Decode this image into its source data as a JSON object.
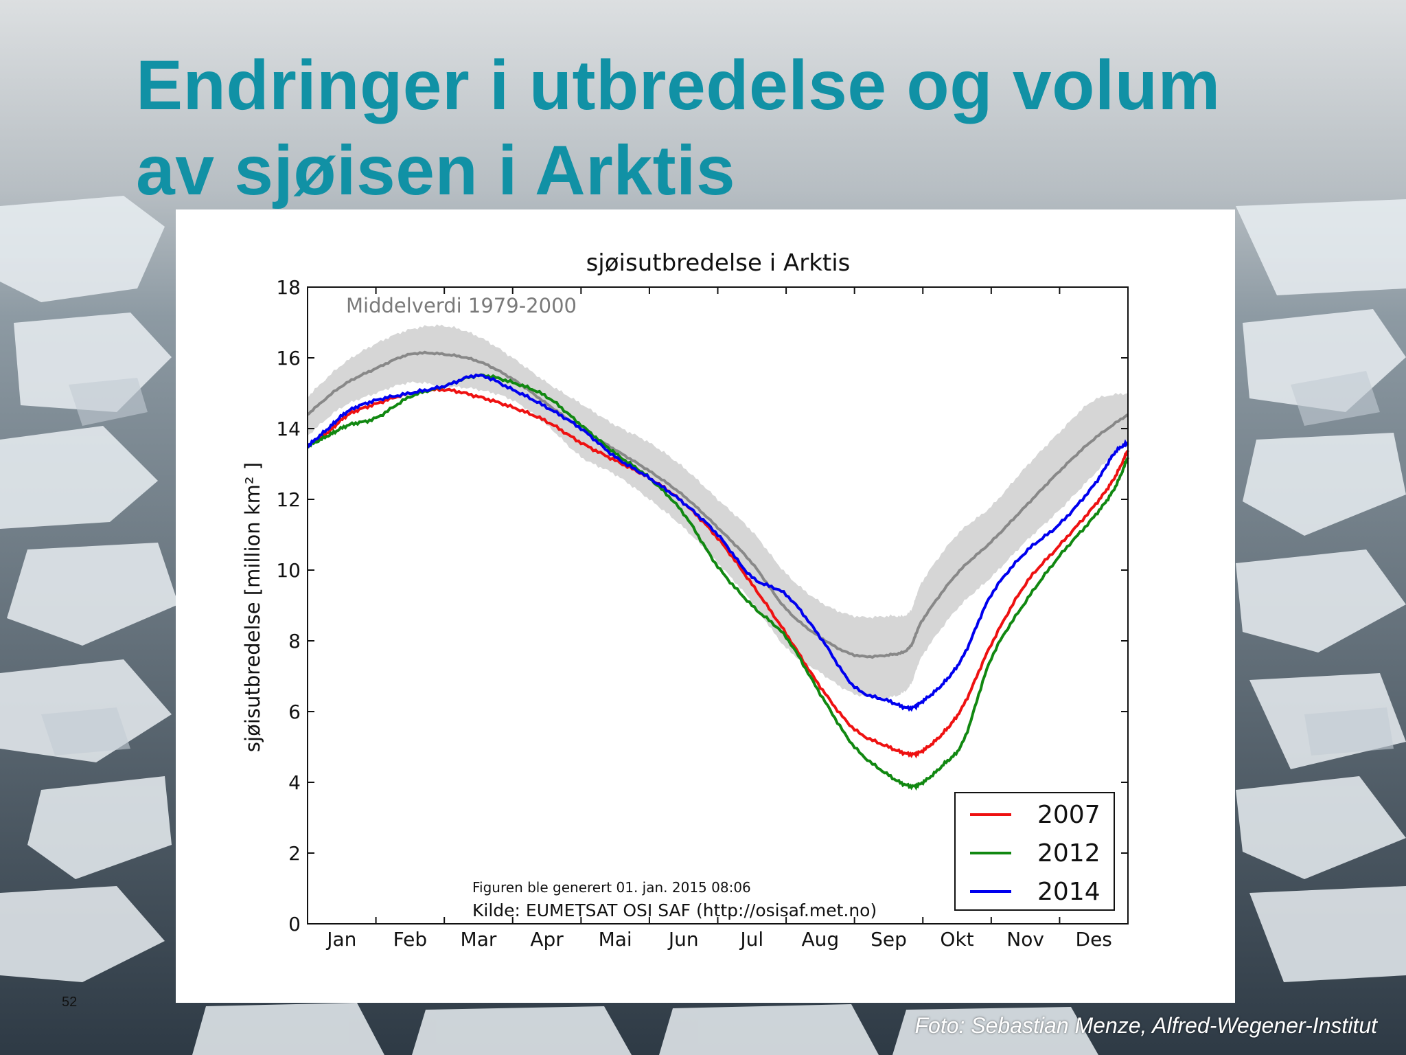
{
  "slide": {
    "title_line1": "Endringer i utbredelse og volum",
    "title_line2": "av sjøisen i Arktis",
    "page_number": "52",
    "photo_credit": "Foto: Sebastian Menze, Alfred-Wegener-Institut",
    "title_color": "#1191a5"
  },
  "chart_data": {
    "type": "line",
    "title": "sjøisutbredelse i Arktis",
    "ylabel": "sjøisutbredelse [million km² ]",
    "xlabel": "",
    "months": [
      "Jan",
      "Feb",
      "Mar",
      "Apr",
      "Mai",
      "Jun",
      "Jul",
      "Aug",
      "Sep",
      "Okt",
      "Nov",
      "Des"
    ],
    "month_positions": [
      0.5,
      1.5,
      2.5,
      3.5,
      4.5,
      5.5,
      6.5,
      7.5,
      8.5,
      9.5,
      10.5,
      11.5
    ],
    "xlim": [
      0,
      12
    ],
    "ylim": [
      0,
      18
    ],
    "yticks": [
      0,
      2,
      4,
      6,
      8,
      10,
      12,
      14,
      16,
      18
    ],
    "grid": false,
    "legend_position": "bottom-right",
    "mean_label": "Middelverdi 1979-2000",
    "mean": {
      "color": "#888888",
      "band_color": "#d6d6d6",
      "x": [
        0,
        0.5,
        1,
        1.5,
        2,
        2.5,
        3,
        3.5,
        4,
        4.5,
        5,
        5.5,
        6,
        6.5,
        7,
        7.5,
        8,
        8.5,
        8.8,
        9,
        9.5,
        10,
        10.5,
        11,
        11.5,
        12
      ],
      "values": [
        14.4,
        15.2,
        15.7,
        16.1,
        16.1,
        15.9,
        15.4,
        14.7,
        14.0,
        13.4,
        12.8,
        12.1,
        11.2,
        10.2,
        8.9,
        8.1,
        7.6,
        7.6,
        7.8,
        8.6,
        9.9,
        10.8,
        11.8,
        12.8,
        13.7,
        14.4
      ],
      "upper": [
        14.9,
        15.8,
        16.4,
        16.8,
        16.9,
        16.6,
        16.0,
        15.3,
        14.7,
        14.1,
        13.6,
        12.9,
        12.0,
        11.1,
        9.9,
        9.1,
        8.7,
        8.7,
        8.8,
        9.7,
        11.0,
        11.8,
        12.9,
        13.9,
        14.8,
        15.0
      ],
      "lower": [
        13.8,
        14.6,
        15.0,
        15.3,
        15.2,
        15.1,
        14.8,
        14.1,
        13.2,
        12.7,
        12.0,
        11.2,
        10.2,
        9.1,
        7.8,
        7.1,
        6.5,
        6.4,
        6.7,
        7.6,
        8.9,
        9.8,
        10.8,
        11.7,
        12.7,
        13.7
      ]
    },
    "series": [
      {
        "name": "2007",
        "color": "#ee1111",
        "x": [
          0,
          0.3,
          0.6,
          1,
          1.5,
          2,
          2.5,
          3,
          3.5,
          4,
          4.5,
          5,
          5.5,
          6,
          6.5,
          7,
          7.5,
          8,
          8.5,
          8.8,
          9,
          9.3,
          9.6,
          10,
          10.5,
          11,
          11.5,
          11.8,
          12
        ],
        "values": [
          13.5,
          13.9,
          14.4,
          14.7,
          15.0,
          15.1,
          14.9,
          14.6,
          14.2,
          13.6,
          13.1,
          12.6,
          11.9,
          10.9,
          9.6,
          8.2,
          6.7,
          5.5,
          5.0,
          4.8,
          4.9,
          5.4,
          6.2,
          7.9,
          9.6,
          10.7,
          11.8,
          12.6,
          13.4
        ]
      },
      {
        "name": "2012",
        "color": "#118811",
        "x": [
          0,
          0.3,
          0.6,
          1,
          1.5,
          2,
          2.5,
          3,
          3.5,
          4,
          4.5,
          5,
          5.5,
          6,
          6.5,
          7,
          7.5,
          8,
          8.5,
          8.8,
          9,
          9.3,
          9.6,
          10,
          10.5,
          11,
          11.5,
          11.8,
          12
        ],
        "values": [
          13.5,
          13.8,
          14.1,
          14.3,
          14.9,
          15.2,
          15.5,
          15.3,
          14.9,
          14.1,
          13.3,
          12.6,
          11.6,
          10.1,
          9.0,
          8.1,
          6.5,
          5.0,
          4.2,
          3.9,
          4.0,
          4.5,
          5.2,
          7.5,
          9.1,
          10.4,
          11.5,
          12.3,
          13.2
        ]
      },
      {
        "name": "2014",
        "color": "#0000ee",
        "x": [
          0,
          0.3,
          0.6,
          1,
          1.5,
          2,
          2.5,
          3,
          3.5,
          4,
          4.5,
          5,
          5.5,
          6,
          6.5,
          7,
          7.5,
          8,
          8.5,
          8.8,
          9,
          9.3,
          9.6,
          10,
          10.5,
          11,
          11.5,
          11.8,
          12
        ],
        "values": [
          13.5,
          14.0,
          14.5,
          14.8,
          15.0,
          15.2,
          15.5,
          15.1,
          14.6,
          14.0,
          13.2,
          12.6,
          11.9,
          11.0,
          9.8,
          9.3,
          8.1,
          6.7,
          6.3,
          6.1,
          6.3,
          6.8,
          7.6,
          9.3,
          10.5,
          11.3,
          12.4,
          13.3,
          13.6
        ]
      }
    ],
    "annotations": [
      "Figuren ble generert 01. jan. 2015 08:06",
      "Kilde: EUMETSAT OSI SAF (http://osisaf.met.no)"
    ]
  }
}
